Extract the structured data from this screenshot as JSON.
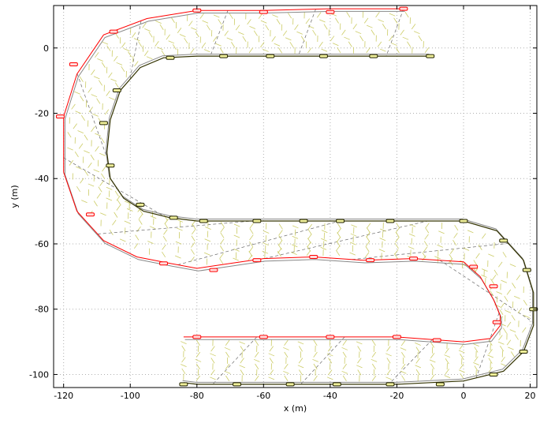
{
  "chart_data": {
    "type": "line",
    "title": "",
    "xlabel": "x (m)",
    "ylabel": "y (m)",
    "xlim": [
      -123,
      22
    ],
    "ylim": [
      -104,
      13
    ],
    "xticks": [
      -120,
      -100,
      -80,
      -60,
      -40,
      -20,
      0,
      20
    ],
    "yticks": [
      -100,
      -80,
      -60,
      -40,
      -20,
      0
    ],
    "grid": true,
    "colors": {
      "outer_path": "#ff0000",
      "inner_path": "#333300",
      "hatch": "#cccc66",
      "dashed": "#666666",
      "reference": "#888888"
    },
    "series": [
      {
        "x": [
          -18,
          -40,
          -60,
          -80,
          -95,
          -108,
          -116,
          -120,
          -120,
          -116,
          -108,
          -98,
          -88,
          -80,
          -70,
          -60,
          -45,
          -30,
          -15,
          0,
          5,
          9,
          11,
          11,
          8,
          0,
          -20,
          -40,
          -60,
          -80,
          -84
        ],
        "y": [
          12,
          12,
          11.5,
          11.5,
          9,
          4,
          -8,
          -21,
          -38,
          -50,
          -59,
          -64,
          -66,
          -67.5,
          -66,
          -64.5,
          -64,
          -65,
          -64.5,
          -65.5,
          -70,
          -77,
          -82,
          -85,
          -89,
          -90,
          -88.5,
          -88.5,
          -88.5,
          -88.5,
          -88.5
        ],
        "markers_x": [
          -80,
          -60,
          -40,
          -18,
          -105,
          -117,
          -121,
          -112,
          -90,
          -75,
          -62,
          -45,
          -28,
          -15,
          3,
          9,
          10,
          -8,
          -20,
          -40,
          -60,
          -80
        ],
        "markers_y": [
          11.5,
          11,
          11,
          12,
          5,
          -5,
          -21,
          -51,
          -66,
          -68,
          -65,
          -64,
          -65,
          -64.5,
          -67,
          -73,
          -84,
          -89.5,
          -88.5,
          -88.5,
          -88.5,
          -88.5
        ]
      },
      {
        "x": [
          -10,
          -25,
          -40,
          -60,
          -80,
          -90,
          -97,
          -103,
          -106,
          -107,
          -106,
          -102,
          -96,
          -88,
          -80,
          -60,
          -40,
          -20,
          0,
          10,
          18,
          21,
          21,
          18,
          12,
          0,
          -20,
          -40,
          -60,
          -80,
          -84
        ],
        "y": [
          -2.5,
          -2.5,
          -2.5,
          -2.5,
          -2.5,
          -3,
          -6,
          -13,
          -22,
          -32,
          -40,
          -46,
          -50,
          -52,
          -53,
          -53,
          -53,
          -53,
          -53,
          -56,
          -65,
          -75,
          -85,
          -93,
          -99,
          -102,
          -103,
          -103,
          -103,
          -103,
          -102.5
        ],
        "markers_x": [
          -88,
          -72,
          -58,
          -42,
          -27,
          -10,
          -104,
          -108,
          -106,
          -97,
          -87,
          -78,
          -62,
          -48,
          -37,
          -22,
          0,
          12,
          19,
          21,
          18,
          9,
          -7,
          -22,
          -38,
          -52,
          -68,
          -84
        ],
        "markers_y": [
          -3,
          -2.5,
          -2.5,
          -2.5,
          -2.5,
          -2.5,
          -13,
          -23,
          -36,
          -48,
          -52,
          -53,
          -53,
          -53,
          -53,
          -53,
          -53,
          -59,
          -68,
          -80,
          -93,
          -100,
          -103,
          -103,
          -103,
          -103,
          -103,
          -103
        ]
      }
    ],
    "annotations": []
  }
}
